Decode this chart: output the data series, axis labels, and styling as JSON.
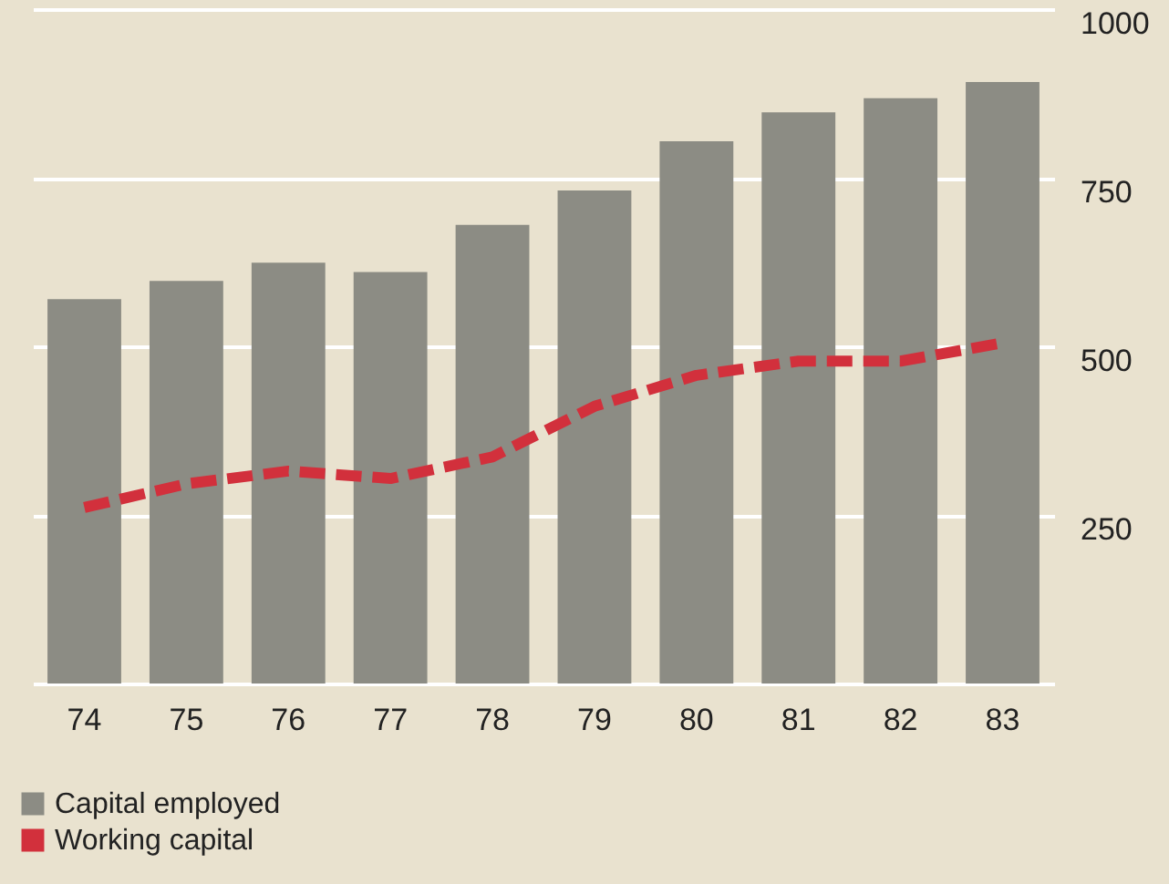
{
  "chart_data": {
    "type": "bar",
    "categories": [
      "74",
      "75",
      "76",
      "77",
      "78",
      "79",
      "80",
      "81",
      "82",
      "83"
    ],
    "series": [
      {
        "name": "Capital employed",
        "color": "#8c8c84",
        "values": [
          570,
          597,
          624,
          610,
          680,
          731,
          804,
          847,
          868,
          892
        ]
      },
      {
        "name": "Working capital",
        "type": "line",
        "color": "#d2303c",
        "line_style": "dashed",
        "values": [
          261,
          296,
          315,
          304,
          336,
          411,
          457,
          478,
          478,
          505
        ]
      }
    ],
    "ylim": [
      0,
      1000
    ],
    "yticks": [
      250,
      500,
      750,
      {
        "value": 1000,
        "label": "1000"
      }
    ],
    "grid": "y",
    "legend": "bottom left"
  }
}
